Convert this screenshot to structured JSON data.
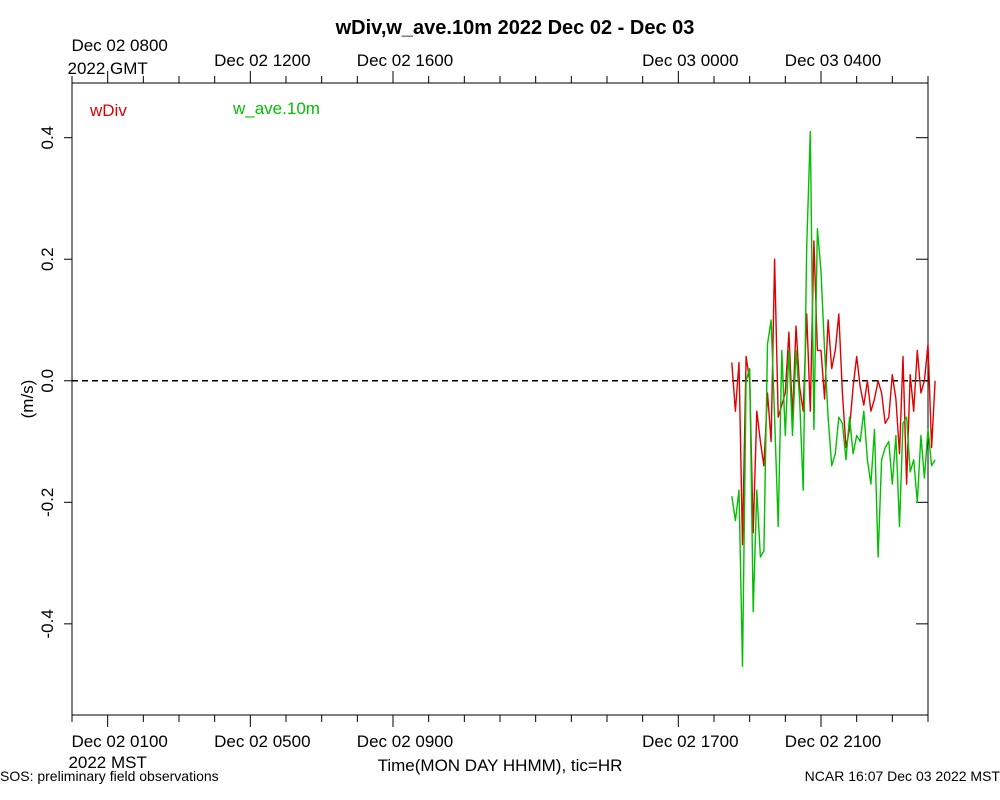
{
  "chart_data": {
    "type": "line",
    "title": "wDiv,w_ave.10m 2022 Dec 02 - Dec 03",
    "xlabel": "Time(MON DAY HHMM), tic=HR",
    "ylabel": "(m/s)",
    "ylim": [
      -0.55,
      0.49
    ],
    "xlim_hours_mst": [
      0,
      24
    ],
    "y_ticks": [
      "-0.4",
      "-0.2",
      "0.0",
      "0.2",
      "0.4"
    ],
    "y_tick_values": [
      -0.4,
      -0.2,
      0.0,
      0.2,
      0.4
    ],
    "zero_line": true,
    "bottom_ticks": [
      {
        "hour": 1,
        "label": "Dec 02 0100",
        "label2": "2022 MST"
      },
      {
        "hour": 5,
        "label": "Dec 02 0500"
      },
      {
        "hour": 9,
        "label": "Dec 02 0900"
      },
      {
        "hour": 17,
        "label": "Dec 02 1700"
      },
      {
        "hour": 21,
        "label": "Dec 02 2100"
      }
    ],
    "top_ticks": [
      {
        "hour": 1,
        "label": "Dec 02 0800",
        "label2": "2022 GMT"
      },
      {
        "hour": 5,
        "label": "Dec 02 1200"
      },
      {
        "hour": 9,
        "label": "Dec 02 1600"
      },
      {
        "hour": 17,
        "label": "Dec 03 0000"
      },
      {
        "hour": 21,
        "label": "Dec 03 0400"
      }
    ],
    "series": [
      {
        "name": "wDiv",
        "color": "#e00000",
        "start_hour": 18.5,
        "step_hours": 0.1,
        "values": [
          0.03,
          -0.05,
          0.03,
          -0.27,
          0.04,
          0.0,
          -0.25,
          -0.05,
          -0.1,
          -0.14,
          -0.02,
          -0.1,
          0.2,
          -0.06,
          -0.04,
          -0.02,
          0.08,
          -0.06,
          0.09,
          -0.01,
          -0.05,
          0.11,
          -0.05,
          0.23,
          0.05,
          0.05,
          -0.03,
          0.1,
          0.02,
          0.05,
          0.11,
          -0.02,
          -0.11,
          -0.08,
          -0.01,
          0.04,
          -0.01,
          -0.04,
          0.0,
          -0.05,
          -0.03,
          0.0,
          -0.02,
          -0.07,
          -0.06,
          0.01,
          -0.03,
          -0.12,
          0.04,
          -0.17,
          0.01,
          -0.05,
          0.05,
          -0.02,
          0.0,
          0.06,
          -0.11,
          0.0
        ]
      },
      {
        "name": "w_ave.10m",
        "color": "#00c000",
        "start_hour": 18.5,
        "step_hours": 0.1,
        "values": [
          -0.19,
          -0.23,
          -0.18,
          -0.47,
          0.0,
          0.02,
          -0.38,
          -0.18,
          -0.29,
          -0.28,
          0.06,
          0.1,
          -0.06,
          -0.24,
          0.05,
          -0.09,
          0.05,
          -0.09,
          0.05,
          -0.03,
          -0.18,
          0.22,
          0.41,
          -0.08,
          0.25,
          0.18,
          0.05,
          -0.06,
          -0.14,
          -0.12,
          -0.06,
          -0.07,
          -0.13,
          -0.06,
          -0.12,
          -0.09,
          -0.1,
          -0.05,
          -0.13,
          -0.17,
          -0.08,
          -0.29,
          -0.13,
          -0.11,
          -0.1,
          -0.17,
          -0.09,
          -0.24,
          -0.07,
          -0.06,
          -0.15,
          -0.13,
          -0.2,
          -0.09,
          -0.16,
          -0.08,
          -0.14,
          -0.13
        ]
      }
    ]
  },
  "footer": {
    "left": "SOS: preliminary field observations",
    "right": "NCAR 16:07 Dec 03 2022 MST"
  }
}
